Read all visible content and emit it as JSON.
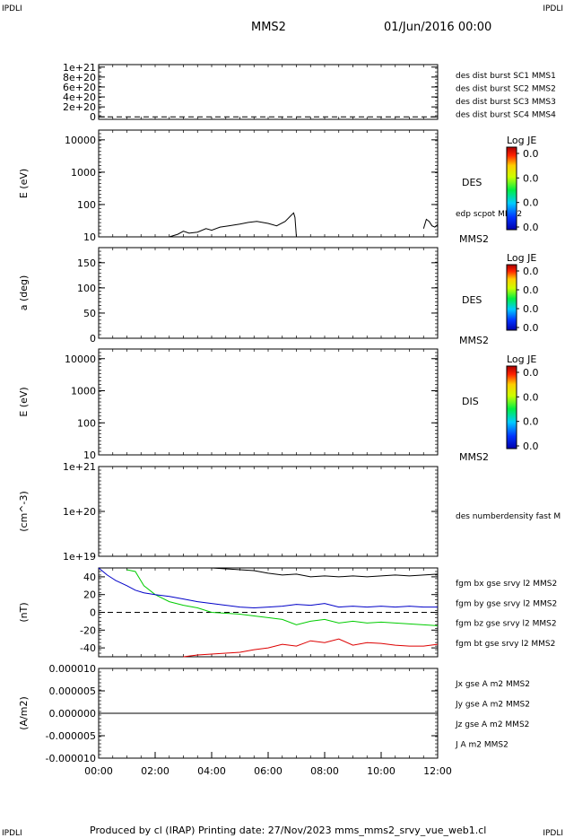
{
  "header": {
    "corner_left": "IPDLI",
    "corner_right": "IPDLI",
    "spacecraft": "MMS2",
    "datetime": "01/Jun/2016 00:00",
    "footer_corner_left": "IPDLI",
    "footer_corner_right": "IPDLI"
  },
  "footer": {
    "text": "Produced by cl (IRAP)   Printing date: 27/Nov/2023   mms_mms2_srvy_vue_web1.cl"
  },
  "colors": {
    "blue": "#0000c8",
    "magenta": "#cc00cc",
    "red": "#dd0000",
    "green": "#00cc00",
    "black": "#000000"
  },
  "chart_data": [
    {
      "type": "line",
      "panel": "des-dist-burst",
      "ylabel": "",
      "y_tick_labels": [
        "1e+21",
        "8e+20",
        "6e+20",
        "4e+20",
        "2e+20",
        "0"
      ],
      "yticks": [
        1e+21,
        8e+20,
        6e+20,
        4e+20,
        2e+20,
        0
      ],
      "ylim": [
        -5e+19,
        1.05e+21
      ],
      "reference_line": 0,
      "legend": [
        {
          "label": "des dist burst SC1 MMS1",
          "color": "#0000c8"
        },
        {
          "label": "des dist burst SC2 MMS2",
          "color": "#cc00cc"
        },
        {
          "label": "des dist burst SC3 MMS3",
          "color": "#dd0000"
        },
        {
          "label": "des dist burst SC4 MMS4",
          "color": "#00cc00"
        }
      ]
    },
    {
      "type": "line",
      "panel": "des-energy",
      "ylabel": "E (eV)",
      "yscale": "log",
      "ylim": [
        10,
        20000
      ],
      "y_tick_labels": [
        "10000",
        "1000",
        "100",
        "10"
      ],
      "yticks": [
        10000,
        1000,
        100,
        10
      ],
      "right_label": "DES",
      "series_label": "edp scpot MMS2",
      "probe_label": "MMS2",
      "colorbar": {
        "title": "Log JE",
        "labels": [
          "0.0",
          "0.0",
          "0.0",
          "0.0"
        ]
      },
      "series": [
        {
          "name": "edp scpot MMS2",
          "color": "#000000",
          "x_hours": [
            2.5,
            2.8,
            3.0,
            3.2,
            3.5,
            3.8,
            4.0,
            4.3,
            4.6,
            5.0,
            5.3,
            5.6,
            6.0,
            6.3,
            6.6,
            6.8,
            6.9,
            6.95,
            7.0
          ],
          "values": [
            10,
            12,
            15,
            13,
            14,
            18,
            16,
            20,
            22,
            25,
            28,
            30,
            26,
            22,
            30,
            45,
            55,
            40,
            10
          ]
        },
        {
          "name": "edp scpot MMS2 (late)",
          "color": "#000000",
          "x_hours": [
            11.5,
            11.6,
            11.7,
            11.8,
            11.9,
            12.0
          ],
          "values": [
            18,
            35,
            30,
            22,
            20,
            24
          ]
        }
      ]
    },
    {
      "type": "heatmap",
      "panel": "des-pitch",
      "ylabel": "a (deg)",
      "ylim": [
        0,
        180
      ],
      "y_tick_labels": [
        "150",
        "100",
        "50",
        "0"
      ],
      "yticks": [
        150,
        100,
        50,
        0
      ],
      "right_label": "DES",
      "probe_label": "MMS2",
      "colorbar": {
        "title": "Log JE",
        "labels": [
          "0.0",
          "0.0",
          "0.0",
          "0.0"
        ]
      }
    },
    {
      "type": "heatmap",
      "panel": "dis-energy",
      "ylabel": "E (eV)",
      "yscale": "log",
      "ylim": [
        10,
        20000
      ],
      "y_tick_labels": [
        "10000",
        "1000",
        "100",
        "10"
      ],
      "yticks": [
        10000,
        1000,
        100,
        10
      ],
      "right_label": "DIS",
      "probe_label": "MMS2",
      "colorbar": {
        "title": "Log JE",
        "labels": [
          "0.0",
          "0.0",
          "0.0",
          "0.0"
        ]
      }
    },
    {
      "type": "line",
      "panel": "numberdensity",
      "ylabel": "(cm^-3)",
      "yscale": "log",
      "ylim": [
        1e+19,
        1e+21
      ],
      "y_tick_labels": [
        "1e+21",
        "1e+20",
        "1e+19"
      ],
      "yticks": [
        1e+21,
        1e+20,
        1e+19
      ],
      "right_label": "des numberdensity fast M"
    },
    {
      "type": "line",
      "panel": "fgm",
      "ylabel": "(nT)",
      "ylim": [
        -50,
        50
      ],
      "y_tick_labels": [
        "40",
        "20",
        "0",
        "-20",
        "-40"
      ],
      "yticks": [
        40,
        20,
        0,
        -20,
        -40
      ],
      "reference_line": 0,
      "series": [
        {
          "name": "fgm bx gse srvy l2 MMS2",
          "color": "#dd0000",
          "x_hours": [
            3.0,
            3.5,
            4.0,
            4.5,
            5.0,
            5.5,
            6.0,
            6.5,
            7.0,
            7.5,
            8.0,
            8.5,
            9.0,
            9.5,
            10.0,
            10.5,
            11.0,
            11.5,
            12.0
          ],
          "values": [
            -50,
            -48,
            -47,
            -46,
            -45,
            -42,
            -40,
            -36,
            -38,
            -32,
            -34,
            -30,
            -37,
            -34,
            -35,
            -37,
            -38,
            -38,
            -36
          ]
        },
        {
          "name": "fgm by gse srvy l2 MMS2",
          "color": "#00cc00",
          "x_hours": [
            1.0,
            1.3,
            1.6,
            2.0,
            2.5,
            3.0,
            3.5,
            4.0,
            4.5,
            5.0,
            5.5,
            6.0,
            6.5,
            7.0,
            7.5,
            8.0,
            8.5,
            9.0,
            9.5,
            10.0,
            10.5,
            11.0,
            11.5,
            12.0
          ],
          "values": [
            48,
            46,
            30,
            20,
            12,
            8,
            5,
            0,
            -1,
            -2,
            -4,
            -6,
            -8,
            -14,
            -10,
            -8,
            -12,
            -10,
            -12,
            -11,
            -12,
            -13,
            -14,
            -15
          ]
        },
        {
          "name": "fgm bz gse srvy l2 MMS2",
          "color": "#0000c8",
          "x_hours": [
            0.0,
            0.3,
            0.6,
            1.0,
            1.3,
            1.6,
            2.0,
            2.5,
            3.0,
            3.5,
            4.0,
            4.5,
            5.0,
            5.5,
            6.0,
            6.5,
            7.0,
            7.5,
            8.0,
            8.5,
            9.0,
            9.5,
            10.0,
            10.5,
            11.0,
            11.5,
            12.0
          ],
          "values": [
            50,
            42,
            36,
            30,
            25,
            22,
            20,
            18,
            15,
            12,
            10,
            8,
            6,
            5,
            6,
            7,
            9,
            8,
            10,
            6,
            7,
            6,
            7,
            6,
            7,
            6,
            6
          ]
        },
        {
          "name": "fgm bt gse srvy l2 MMS2",
          "color": "#000000",
          "x_hours": [
            1.0,
            1.5,
            2.0,
            2.5,
            3.0,
            3.5,
            4.0,
            4.5,
            5.0,
            5.5,
            6.0,
            6.5,
            7.0,
            7.5,
            8.0,
            8.5,
            9.0,
            9.5,
            10.0,
            10.5,
            11.0,
            11.5,
            12.0
          ],
          "values": [
            50,
            50,
            50,
            50,
            50,
            50,
            50,
            49,
            48,
            47,
            44,
            42,
            43,
            40,
            41,
            40,
            41,
            40,
            41,
            42,
            41,
            42,
            43
          ]
        }
      ]
    },
    {
      "type": "line",
      "panel": "current-density",
      "ylabel": "(A/m2)",
      "ylim": [
        -1e-05,
        1e-05
      ],
      "y_tick_labels": [
        "0.000010",
        "0.000005",
        "0.000000",
        "-0.000005",
        "-0.000010"
      ],
      "yticks": [
        1e-05,
        5e-06,
        0,
        -5e-06,
        -1e-05
      ],
      "xlim": [
        0,
        12
      ],
      "x_tick_labels": [
        "00:00",
        "02:00",
        "04:00",
        "06:00",
        "08:00",
        "10:00",
        "12:00"
      ],
      "xticks": [
        0,
        2,
        4,
        6,
        8,
        10,
        12
      ],
      "series": [
        {
          "name": "Jx gse A m2 MMS2",
          "color": "#dd0000",
          "x_hours": [],
          "values": []
        },
        {
          "name": "Jy gse A m2 MMS2",
          "color": "#00cc00",
          "x_hours": [],
          "values": []
        },
        {
          "name": "Jz gse A m2 MMS2",
          "color": "#0000c8",
          "x_hours": [],
          "values": []
        },
        {
          "name": "J A m2 MMS2",
          "color": "#000000",
          "x_hours": [
            0,
            1,
            2,
            3,
            4,
            5,
            6,
            7,
            8,
            9,
            10,
            11,
            12
          ],
          "values": [
            0,
            0,
            0,
            0,
            0,
            0,
            0,
            0,
            0,
            0,
            0,
            0,
            0
          ]
        }
      ]
    }
  ]
}
